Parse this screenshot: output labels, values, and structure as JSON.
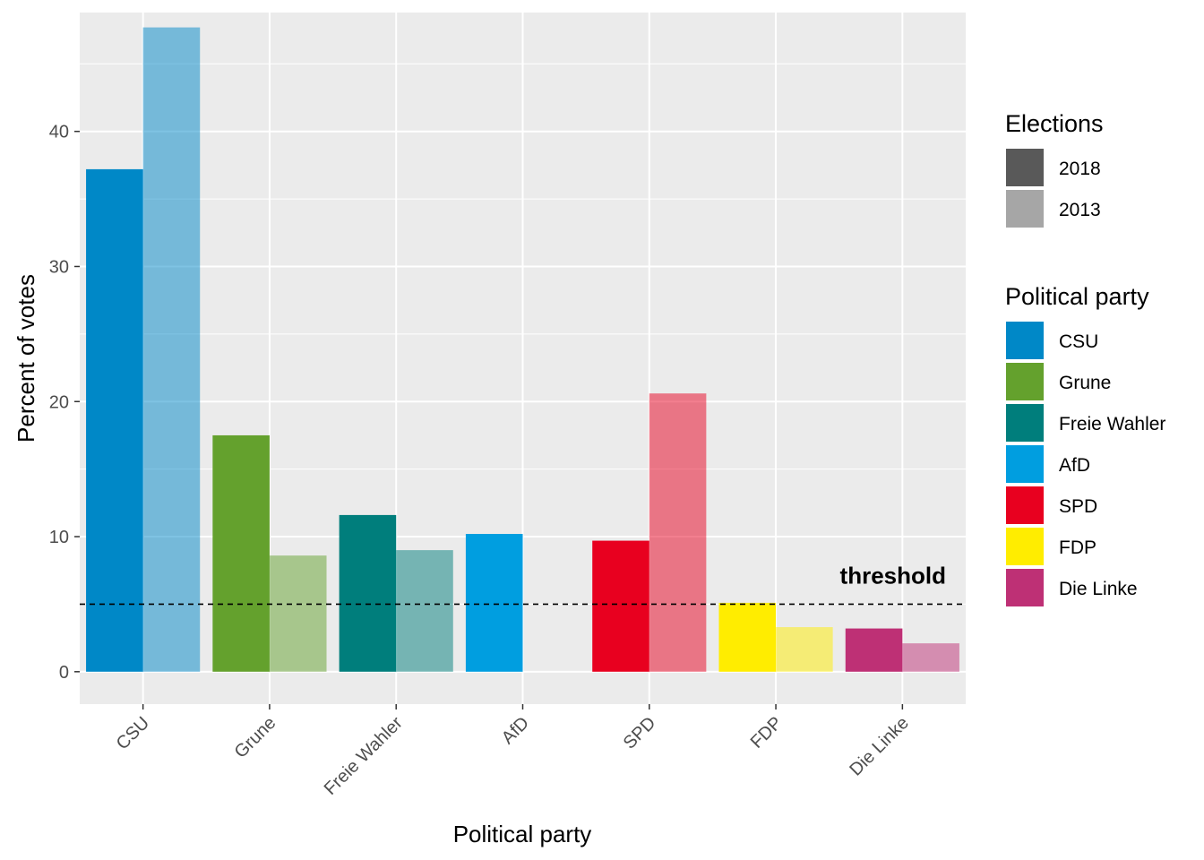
{
  "chart_data": {
    "type": "bar",
    "xlabel": "Political party",
    "ylabel": "Percent of votes",
    "ylim": [
      -2.4,
      48.8
    ],
    "yticks": [
      0,
      10,
      20,
      30,
      40
    ],
    "grid": true,
    "categories": [
      "CSU",
      "Grune",
      "Freie Wahler",
      "AfD",
      "SPD",
      "FDP",
      "Die Linke"
    ],
    "colors": [
      "#0088C7",
      "#64A12D",
      "#007E7C",
      "#009EE0",
      "#E8001F",
      "#FFED00",
      "#BE3075"
    ],
    "series": [
      {
        "name": "2018",
        "values": [
          37.2,
          17.5,
          11.6,
          10.2,
          9.7,
          5.1,
          3.2
        ],
        "opacity": 1.0
      },
      {
        "name": "2013",
        "values": [
          47.7,
          8.6,
          9.0,
          null,
          20.6,
          3.3,
          2.1
        ],
        "opacity": 0.5
      }
    ],
    "threshold": {
      "value": 5,
      "label": "threshold"
    },
    "legends": [
      {
        "title": "Elections",
        "items": [
          {
            "label": "2018",
            "color": "#595959"
          },
          {
            "label": "2013",
            "color": "#A6A6A6"
          }
        ]
      },
      {
        "title": "Political party",
        "items": [
          {
            "label": "CSU",
            "color": "#0088C7"
          },
          {
            "label": "Grune",
            "color": "#64A12D"
          },
          {
            "label": "Freie Wahler",
            "color": "#007E7C"
          },
          {
            "label": "AfD",
            "color": "#009EE0"
          },
          {
            "label": "SPD",
            "color": "#E8001F"
          },
          {
            "label": "FDP",
            "color": "#FFED00"
          },
          {
            "label": "Die Linke",
            "color": "#BE3075"
          }
        ]
      }
    ],
    "legend_position": "right"
  }
}
